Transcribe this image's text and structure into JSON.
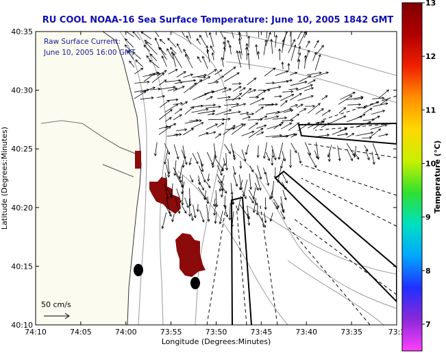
{
  "chart_data": {
    "type": "map",
    "title": "RU COOL  NOAA-16  Sea Surface Temperature:  June 10, 2005 1842 GMT",
    "xlabel": "Longitude (Degrees:Minutes)",
    "ylabel": "Latitude (Degrees:Minutes)",
    "x_ticks": [
      "74:10",
      "74:05",
      "74:00",
      "73:55",
      "73:50",
      "73:45",
      "73:40",
      "73:35",
      "73:3"
    ],
    "y_ticks": [
      "40:35",
      "40:30",
      "40:25",
      "40:20",
      "40:15",
      "40:10"
    ],
    "annotation_line1": "Raw Surface Current:",
    "annotation_line2": "June 10, 2005 16:00 GMT",
    "scale_label": "50 cm/s",
    "colorbar": {
      "label": "Temperature (°C)",
      "ticks": [
        "13",
        "12",
        "11",
        "10",
        "9",
        "8",
        "7"
      ],
      "min": 6.5,
      "max": 13,
      "colors": [
        "#ff40ff",
        "#8a28d8",
        "#2030ff",
        "#00a8ff",
        "#00e0c0",
        "#30e030",
        "#c8f000",
        "#ffd800",
        "#ff9000",
        "#f02000",
        "#b00000",
        "#800000"
      ]
    },
    "sst_patches_color": "#8b0a0a"
  }
}
